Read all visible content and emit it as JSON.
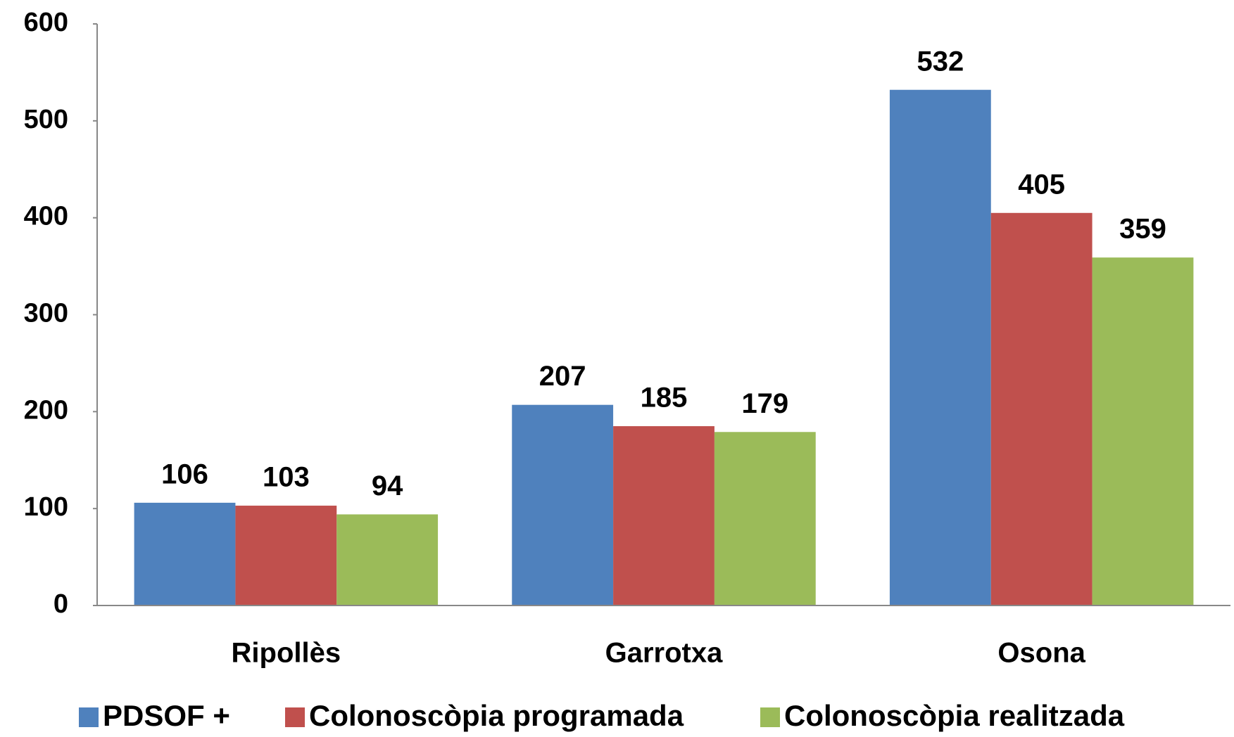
{
  "chart_data": {
    "type": "bar",
    "categories": [
      "Ripollès",
      "Garrotxa",
      "Osona"
    ],
    "series": [
      {
        "name": "PDSOF +",
        "color": "#4f81bd",
        "values": [
          106,
          207,
          532
        ]
      },
      {
        "name": "Colonoscòpia programada",
        "color": "#c0504d",
        "values": [
          103,
          185,
          405
        ]
      },
      {
        "name": "Colonoscòpia realitzada",
        "color": "#9bbb59",
        "values": [
          94,
          179,
          359
        ]
      }
    ],
    "ylim": [
      0,
      600
    ],
    "yticks": [
      0,
      100,
      200,
      300,
      400,
      500,
      600
    ],
    "grid": false,
    "legend": "bottom"
  }
}
